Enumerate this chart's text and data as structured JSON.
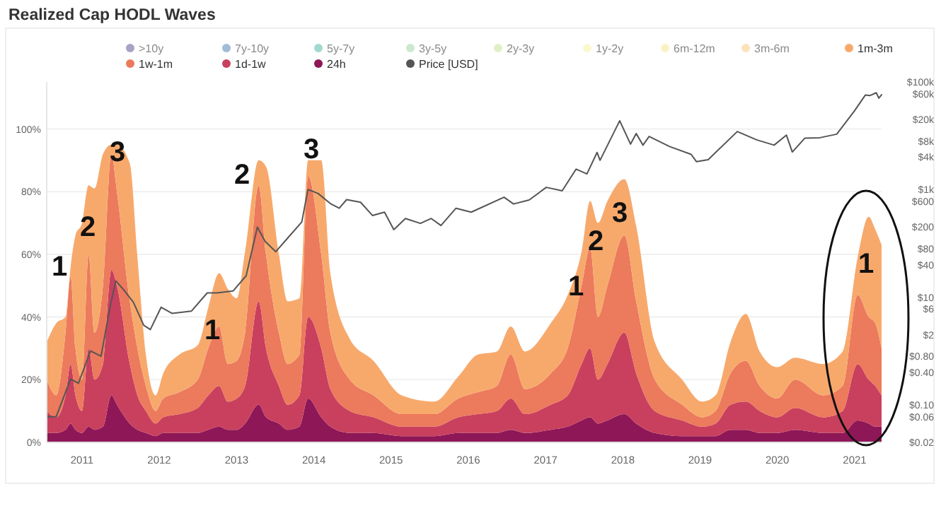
{
  "chart_data": {
    "type": "area",
    "title": "Realized Cap HODL Waves",
    "stacked": true,
    "legend": "top",
    "grid": "y",
    "x": [
      "2010-07-18",
      "2010-09-01",
      "2010-10-15",
      "2010-11-08",
      "2010-12-01",
      "2011-01-01",
      "2011-02-01",
      "2011-03-01",
      "2011-04-10",
      "2011-05-20",
      "2011-06-15",
      "2011-08-15",
      "2011-09-20",
      "2011-10-30",
      "2011-12-15",
      "2012-01-20",
      "2012-04-05",
      "2012-07-01",
      "2012-08-20",
      "2012-10-10",
      "2012-11-20",
      "2013-01-01",
      "2013-02-10",
      "2013-04-15",
      "2013-05-20",
      "2013-07-20",
      "2013-08-30",
      "2013-10-25",
      "2013-12-05",
      "2014-02-05",
      "2014-03-20",
      "2014-06-20",
      "2014-10-10",
      "2015-02-20",
      "2015-07-25",
      "2015-11-15",
      "2016-02-15",
      "2016-05-15",
      "2016-07-20",
      "2016-09-25",
      "2017-01-25",
      "2017-04-15",
      "2017-06-20",
      "2017-07-30",
      "2017-09-05",
      "2017-10-20",
      "2018-01-08",
      "2018-03-05",
      "2018-06-01",
      "2018-10-08",
      "2019-01-10",
      "2019-03-15",
      "2019-05-25",
      "2019-08-05",
      "2019-10-10",
      "2020-01-01",
      "2020-03-25",
      "2020-08-05",
      "2020-11-05",
      "2021-01-15",
      "2021-03-08",
      "2021-04-08",
      "2021-05-08"
    ],
    "xlim": [
      "2010-07-18",
      "2021-05-08"
    ],
    "xticks": [
      {
        "value": "2011",
        "label": "2011"
      },
      {
        "value": "2012",
        "label": "2012"
      },
      {
        "value": "2013",
        "label": "2013"
      },
      {
        "value": "2014",
        "label": "2014"
      },
      {
        "value": "2015",
        "label": "2015"
      },
      {
        "value": "2016",
        "label": "2016"
      },
      {
        "value": "2017",
        "label": "2017"
      },
      {
        "value": "2018",
        "label": "2018"
      },
      {
        "value": "2019",
        "label": "2019"
      },
      {
        "value": "2020",
        "label": "2020"
      },
      {
        "value": "2021",
        "label": "2021"
      }
    ],
    "ylim": [
      0,
      115
    ],
    "yticks": [
      {
        "value": 0,
        "label": "0%"
      },
      {
        "value": 20,
        "label": "20%"
      },
      {
        "value": 40,
        "label": "40%"
      },
      {
        "value": 60,
        "label": "60%"
      },
      {
        "value": 80,
        "label": "80%"
      },
      {
        "value": 100,
        "label": "100%"
      }
    ],
    "log": "y2",
    "y2lim": [
      0.02,
      100000
    ],
    "y2ticks": [
      {
        "value": 100000,
        "label": "$100k"
      },
      {
        "value": 60000,
        "label": "$60k"
      },
      {
        "value": 20000,
        "label": "$20k"
      },
      {
        "value": 8000,
        "label": "$8k"
      },
      {
        "value": 4000,
        "label": "$4k"
      },
      {
        "value": 1000,
        "label": "$1k"
      },
      {
        "value": 600,
        "label": "$600"
      },
      {
        "value": 200,
        "label": "$200"
      },
      {
        "value": 80,
        "label": "$80"
      },
      {
        "value": 40,
        "label": "$40"
      },
      {
        "value": 10,
        "label": "$10"
      },
      {
        "value": 6,
        "label": "$6"
      },
      {
        "value": 2,
        "label": "$2"
      },
      {
        "value": 0.8,
        "label": "$0.80"
      },
      {
        "value": 0.4,
        "label": "$0.40"
      },
      {
        "value": 0.1,
        "label": "$0.10"
      },
      {
        "value": 0.06,
        "label": "$0.06"
      },
      {
        "value": 0.02,
        "label": "$0.02"
      }
    ],
    "series": [
      {
        "name": "24h",
        "color": "#8e1757",
        "values": [
          3,
          3,
          4,
          6,
          4,
          3,
          5,
          4,
          5,
          15,
          12,
          6,
          4,
          3,
          2,
          3,
          3,
          3,
          4,
          5,
          4,
          4,
          6,
          12,
          8,
          6,
          4,
          5,
          14,
          8,
          5,
          3,
          3,
          2,
          2,
          3,
          3,
          3,
          4,
          3,
          4,
          5,
          7,
          8,
          6,
          7,
          9,
          6,
          3,
          2,
          2,
          2,
          4,
          4,
          3,
          3,
          4,
          3,
          3,
          7,
          6,
          5,
          5
        ]
      },
      {
        "name": "1d-1w",
        "color": "#c9405e",
        "values": [
          7,
          5,
          11,
          19,
          11,
          7,
          25,
          16,
          20,
          40,
          38,
          19,
          11,
          7,
          4,
          5,
          6,
          8,
          11,
          13,
          9,
          10,
          12,
          33,
          22,
          12,
          8,
          10,
          26,
          22,
          12,
          7,
          5,
          3,
          3,
          5,
          6,
          7,
          10,
          6,
          8,
          10,
          18,
          22,
          14,
          18,
          26,
          16,
          7,
          5,
          3,
          4,
          8,
          9,
          7,
          5,
          7,
          5,
          7,
          18,
          14,
          13,
          10
        ]
      },
      {
        "name": "1w-1m",
        "color": "#ec7a5c",
        "values": [
          10,
          7,
          20,
          28,
          15,
          10,
          30,
          15,
          25,
          37,
          30,
          20,
          15,
          8,
          4,
          6,
          7,
          9,
          15,
          19,
          12,
          12,
          17,
          37,
          30,
          17,
          13,
          13,
          45,
          30,
          18,
          10,
          7,
          4,
          4,
          6,
          7,
          8,
          14,
          8,
          10,
          15,
          25,
          32,
          20,
          25,
          31,
          23,
          10,
          5,
          3,
          4,
          10,
          13,
          8,
          6,
          9,
          7,
          8,
          22,
          20,
          20,
          15
        ]
      },
      {
        "name": "1m-3m",
        "color": "#f7a96c",
        "values": [
          12,
          23,
          5,
          3,
          36,
          50,
          22,
          46,
          42,
          3,
          15,
          44,
          29,
          10,
          5,
          8,
          12,
          11,
          13,
          17,
          24,
          20,
          26,
          8,
          28,
          25,
          20,
          18,
          5,
          30,
          19,
          13,
          11,
          6,
          4,
          7,
          12,
          11,
          9,
          12,
          16,
          17,
          11,
          15,
          30,
          27,
          18,
          24,
          12,
          8,
          5,
          5,
          10,
          15,
          11,
          10,
          7,
          10,
          11,
          12,
          32,
          30,
          33
        ]
      },
      {
        "name": "3m-6m",
        "color": "#f4c26b",
        "values": [
          null,
          null,
          null,
          null,
          null,
          null,
          null,
          null,
          null,
          null,
          null,
          null,
          null,
          null,
          null,
          null,
          null,
          null,
          null,
          null,
          null,
          null,
          null,
          null,
          null,
          null,
          null,
          null,
          null,
          null,
          null,
          null,
          null,
          null,
          null,
          null,
          null,
          null,
          null,
          null,
          null,
          null,
          null,
          null,
          null,
          null,
          null,
          null,
          null,
          null,
          null,
          null,
          null,
          null,
          null,
          null,
          null,
          null,
          null,
          null,
          null,
          null,
          null
        ]
      },
      {
        "name": "6m-12m",
        "color": "#f6df7c",
        "values": [
          null,
          null,
          null,
          null,
          null,
          null,
          null,
          null,
          null,
          null,
          null,
          null,
          null,
          null,
          null,
          null,
          null,
          null,
          null,
          null,
          null,
          null,
          null,
          null,
          null,
          null,
          null,
          null,
          null,
          null,
          null,
          null,
          null,
          null,
          null,
          null,
          null,
          null,
          null,
          null,
          null,
          null,
          null,
          null,
          null,
          null,
          null,
          null,
          null,
          null,
          null,
          null,
          null,
          null,
          null,
          null,
          null,
          null,
          null,
          null,
          null,
          null,
          null
        ]
      },
      {
        "name": "1y-2y",
        "color": "#f3f291",
        "values": [
          null,
          null,
          null,
          null,
          null,
          null,
          null,
          null,
          null,
          null,
          null,
          null,
          null,
          null,
          null,
          null,
          null,
          null,
          null,
          null,
          null,
          null,
          null,
          null,
          null,
          null,
          null,
          null,
          null,
          null,
          null,
          null,
          null,
          null,
          null,
          null,
          null,
          null,
          null,
          null,
          null,
          null,
          null,
          null,
          null,
          null,
          null,
          null,
          null,
          null,
          null,
          null,
          null,
          null,
          null,
          null,
          null,
          null,
          null,
          null,
          null,
          null,
          null
        ]
      },
      {
        "name": "2y-3y",
        "color": "#b6df7c",
        "values": [
          null,
          null,
          null,
          null,
          null,
          null,
          null,
          null,
          null,
          null,
          null,
          null,
          null,
          null,
          null,
          null,
          null,
          null,
          null,
          null,
          null,
          null,
          null,
          null,
          null,
          null,
          null,
          null,
          null,
          null,
          null,
          null,
          null,
          null,
          null,
          null,
          null,
          null,
          null,
          null,
          null,
          null,
          null,
          null,
          null,
          null,
          null,
          null,
          null,
          null,
          null,
          null,
          null,
          null,
          null,
          null,
          null,
          null,
          null,
          null,
          null,
          null,
          null
        ]
      },
      {
        "name": "3y-5y",
        "color": "#8dcf93",
        "values": [
          null,
          null,
          null,
          null,
          null,
          null,
          null,
          null,
          null,
          null,
          null,
          null,
          null,
          null,
          null,
          null,
          null,
          null,
          null,
          null,
          null,
          null,
          null,
          null,
          null,
          null,
          null,
          null,
          null,
          null,
          null,
          null,
          null,
          null,
          null,
          null,
          null,
          null,
          null,
          null,
          null,
          null,
          null,
          null,
          null,
          null,
          null,
          null,
          null,
          null,
          null,
          null,
          null,
          null,
          null,
          null,
          null,
          null,
          null,
          null,
          null,
          null,
          null
        ]
      },
      {
        "name": "5y-7y",
        "color": "#33a89a",
        "values": [
          null,
          null,
          null,
          null,
          null,
          null,
          null,
          null,
          null,
          null,
          null,
          null,
          null,
          null,
          null,
          null,
          null,
          null,
          null,
          null,
          null,
          null,
          null,
          null,
          null,
          null,
          null,
          null,
          null,
          null,
          null,
          null,
          null,
          null,
          null,
          null,
          null,
          null,
          null,
          null,
          null,
          null,
          null,
          null,
          null,
          null,
          null,
          null,
          null,
          null,
          null,
          null,
          null,
          null,
          null,
          null,
          null,
          null,
          null,
          null,
          null,
          null,
          null
        ]
      },
      {
        "name": "7y-10y",
        "color": "#2c6aa6",
        "values": [
          null,
          null,
          null,
          null,
          null,
          null,
          null,
          null,
          null,
          null,
          null,
          null,
          null,
          null,
          null,
          null,
          null,
          null,
          null,
          null,
          null,
          null,
          null,
          null,
          null,
          null,
          null,
          null,
          null,
          null,
          null,
          null,
          null,
          null,
          null,
          null,
          null,
          null,
          null,
          null,
          null,
          null,
          null,
          null,
          null,
          null,
          null,
          null,
          null,
          null,
          null,
          null,
          null,
          null,
          null,
          null,
          null,
          null,
          null,
          null,
          null,
          null,
          null
        ]
      },
      {
        "name": ">10y",
        "color": "#40307f",
        "values": [
          null,
          null,
          null,
          null,
          null,
          null,
          null,
          null,
          null,
          null,
          null,
          null,
          null,
          null,
          null,
          null,
          null,
          null,
          null,
          null,
          null,
          null,
          null,
          null,
          null,
          null,
          null,
          null,
          null,
          null,
          null,
          null,
          null,
          null,
          null,
          null,
          null,
          null,
          null,
          null,
          null,
          null,
          null,
          null,
          null,
          null,
          null,
          null,
          null,
          null,
          null,
          null,
          null,
          null,
          null,
          null,
          null,
          null,
          null,
          null,
          null,
          null,
          null
        ]
      },
      {
        "name": "Price [USD]",
        "type": "line",
        "axis": "y2",
        "color": "#555555",
        "x": [
          "2010-07-18",
          "2010-09-01",
          "2010-11-08",
          "2010-12-15",
          "2011-02-10",
          "2011-04-01",
          "2011-05-15",
          "2011-06-10",
          "2011-07-15",
          "2011-09-01",
          "2011-10-20",
          "2011-11-20",
          "2012-01-10",
          "2012-03-01",
          "2012-06-01",
          "2012-08-15",
          "2012-10-01",
          "2012-12-15",
          "2013-02-15",
          "2013-04-09",
          "2013-05-15",
          "2013-07-05",
          "2013-08-30",
          "2013-11-05",
          "2013-12-04",
          "2014-01-20",
          "2014-03-20",
          "2014-05-01",
          "2014-06-05",
          "2014-08-10",
          "2014-10-05",
          "2014-12-01",
          "2015-01-14",
          "2015-03-10",
          "2015-05-20",
          "2015-07-10",
          "2015-08-25",
          "2015-11-04",
          "2016-01-15",
          "2016-06-18",
          "2016-08-02",
          "2016-10-15",
          "2017-01-04",
          "2017-03-20",
          "2017-05-25",
          "2017-07-15",
          "2017-09-01",
          "2017-09-15",
          "2017-12-17",
          "2018-02-06",
          "2018-03-05",
          "2018-04-06",
          "2018-05-05",
          "2018-08-10",
          "2018-11-20",
          "2018-12-15",
          "2019-02-08",
          "2019-06-26",
          "2019-09-25",
          "2019-12-17",
          "2020-02-13",
          "2020-03-12",
          "2020-05-10",
          "2020-07-20",
          "2020-10-08",
          "2020-12-31",
          "2021-02-20",
          "2021-03-15",
          "2021-04-13",
          "2021-04-25",
          "2021-05-08"
        ],
        "values": [
          0.06,
          0.06,
          0.3,
          0.25,
          1,
          0.8,
          7,
          20,
          14,
          8,
          3,
          2.5,
          6.5,
          5,
          5.5,
          12,
          12,
          13,
          25,
          200,
          110,
          70,
          125,
          250,
          1000,
          850,
          550,
          450,
          650,
          580,
          330,
          380,
          180,
          290,
          235,
          290,
          215,
          450,
          380,
          720,
          540,
          640,
          1100,
          950,
          2400,
          1950,
          4900,
          3500,
          19000,
          7000,
          11000,
          6700,
          9700,
          6300,
          4500,
          3300,
          3600,
          12000,
          8400,
          6700,
          10300,
          5000,
          9000,
          9200,
          10700,
          29000,
          57000,
          56000,
          63000,
          50000,
          58000
        ]
      }
    ],
    "annotations": [
      "1",
      "2",
      "3",
      "1",
      "2",
      "3",
      "1",
      "2",
      "3",
      "1"
    ]
  }
}
